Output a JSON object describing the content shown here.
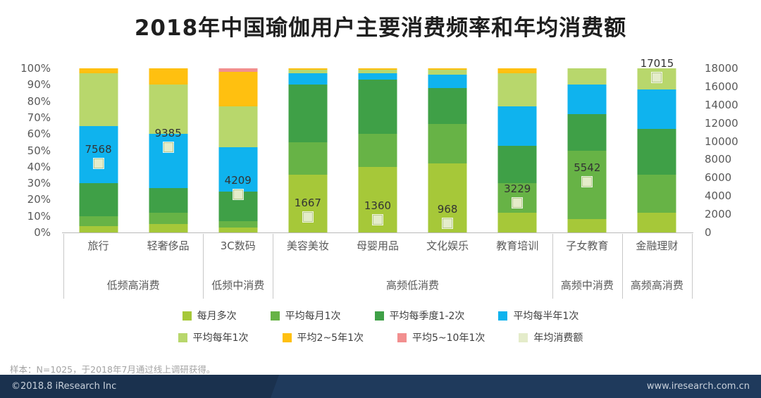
{
  "chart_data": {
    "type": "bar",
    "subtype": "stacked-100-with-marker",
    "title": "2018年中国瑜伽用户主要消费频率和年均消费额",
    "categories": [
      "旅行",
      "轻奢侈品",
      "3C数码",
      "美容美妆",
      "母婴用品",
      "文化娱乐",
      "教育培训",
      "子女教育",
      "金融理财"
    ],
    "groups": [
      {
        "label": "低频高消费",
        "span": 2
      },
      {
        "label": "低频中消费",
        "span": 1
      },
      {
        "label": "高频低消费",
        "span": 4
      },
      {
        "label": "高频中消费",
        "span": 1
      },
      {
        "label": "高频高消费",
        "span": 1
      }
    ],
    "series": [
      {
        "key": "monthly-multiple",
        "name": "每月多次",
        "color": "#a6c839",
        "values": [
          4,
          5,
          3,
          35,
          40,
          42,
          12,
          8,
          12
        ]
      },
      {
        "key": "monthly-once",
        "name": "平均每月1次",
        "color": "#67b346",
        "values": [
          6,
          7,
          4,
          20,
          20,
          24,
          18,
          42,
          23
        ]
      },
      {
        "key": "quarterly-1-2",
        "name": "平均每季度1-2次",
        "color": "#3fa047",
        "values": [
          20,
          15,
          18,
          35,
          33,
          22,
          23,
          22,
          28
        ]
      },
      {
        "key": "half-year-once",
        "name": "平均每半年1次",
        "color": "#0fb3ee",
        "values": [
          35,
          33,
          27,
          7,
          4,
          8,
          24,
          18,
          24
        ]
      },
      {
        "key": "yearly-once",
        "name": "平均每年1次",
        "color": "#b8d76c",
        "values": [
          32,
          30,
          25,
          2,
          2,
          3,
          20,
          10,
          13
        ]
      },
      {
        "key": "every-2-5-years",
        "name": "平均2~5年1次",
        "color": "#ffc010",
        "values": [
          3,
          10,
          21,
          1,
          1,
          1,
          3,
          0,
          0
        ]
      },
      {
        "key": "every-5-10-years",
        "name": "平均5~10年1次",
        "color": "#f28f8f",
        "values": [
          0,
          0,
          2,
          0,
          0,
          0,
          0,
          0,
          0
        ]
      }
    ],
    "marker_series": {
      "key": "annual-spend",
      "name": "年均消费额",
      "color": "#e4ecca",
      "values": [
        7568,
        9385,
        4209,
        1667,
        1360,
        968,
        3229,
        5542,
        17015
      ]
    },
    "left_axis": {
      "ticks": [
        "0%",
        "10%",
        "20%",
        "30%",
        "40%",
        "50%",
        "60%",
        "70%",
        "80%",
        "90%",
        "100%"
      ],
      "min": 0,
      "max": 100
    },
    "right_axis": {
      "ticks": [
        0,
        2000,
        4000,
        6000,
        8000,
        10000,
        12000,
        14000,
        16000,
        18000
      ],
      "min": 0,
      "max": 18000
    },
    "legend_rows": [
      4,
      4
    ],
    "grid": false,
    "legend_position": "bottom"
  },
  "footer": {
    "sample_note": "样本：N=1025，于2018年7月通过线上调研获得。",
    "copyright": "©2018.8 iResearch Inc",
    "website": "www.iresearch.com.cn"
  }
}
